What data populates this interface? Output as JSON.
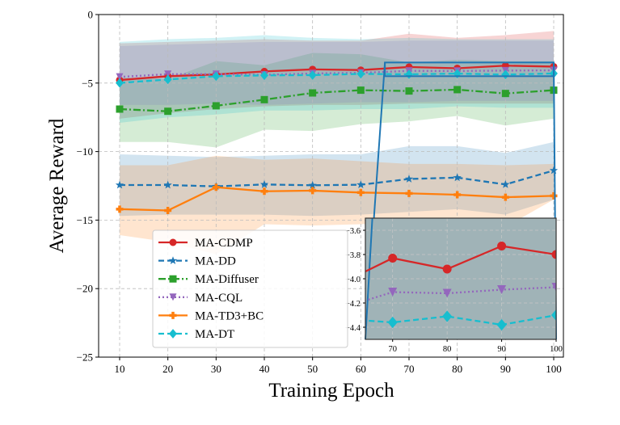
{
  "chart_data": {
    "type": "line",
    "xlabel": "Training Epoch",
    "ylabel": "Average Reward",
    "x": [
      10,
      20,
      30,
      40,
      50,
      60,
      70,
      80,
      90,
      100
    ],
    "xlim": [
      5,
      105
    ],
    "ylim": [
      -25,
      0
    ],
    "xticks": [
      "10",
      "20",
      "30",
      "40",
      "50",
      "60",
      "70",
      "80",
      "90",
      "100"
    ],
    "yticks": [
      "−25",
      "−20",
      "−15",
      "−10",
      "−5",
      "0"
    ],
    "grid": true,
    "legend_position": "lower-left",
    "series": [
      {
        "name": "MA-CDMP",
        "color": "#d62728",
        "marker": "circle",
        "linestyle": "solid",
        "values": [
          -4.78,
          -4.5,
          -4.37,
          -4.15,
          -4.0,
          -4.05,
          -3.83,
          -3.92,
          -3.73,
          -3.8
        ],
        "upper": [
          -2.1,
          -2.0,
          -1.9,
          -1.8,
          -1.9,
          -1.9,
          -1.4,
          -1.7,
          -1.5,
          -1.2
        ],
        "lower": [
          -7.6,
          -7.2,
          -6.9,
          -6.7,
          -6.6,
          -6.6,
          -6.5,
          -6.5,
          -6.5,
          -6.5
        ]
      },
      {
        "name": "MA-DD",
        "color": "#1f77b4",
        "marker": "star",
        "linestyle": "dashed",
        "values": [
          -12.44,
          -12.44,
          -12.54,
          -12.4,
          -12.46,
          -12.42,
          -12.0,
          -11.9,
          -12.4,
          -11.38
        ],
        "upper": [
          -10.2,
          -10.3,
          -10.4,
          -10.3,
          -10.2,
          -10.2,
          -9.6,
          -9.6,
          -10.1,
          -9.3
        ],
        "lower": [
          -14.7,
          -14.6,
          -14.6,
          -14.6,
          -14.7,
          -14.6,
          -14.4,
          -14.2,
          -14.6,
          -13.5
        ]
      },
      {
        "name": "MA-Diffuser",
        "color": "#2ca02c",
        "marker": "square",
        "linestyle": "dashdot",
        "values": [
          -6.9,
          -7.06,
          -6.66,
          -6.21,
          -5.72,
          -5.52,
          -5.58,
          -5.48,
          -5.76,
          -5.52
        ],
        "upper": [
          -4.6,
          -4.7,
          -3.4,
          -3.7,
          -2.8,
          -2.9,
          -3.5,
          -3.3,
          -3.4,
          -3.4
        ],
        "lower": [
          -9.3,
          -9.3,
          -9.7,
          -8.4,
          -8.5,
          -8.0,
          -7.8,
          -7.4,
          -8.1,
          -7.6
        ]
      },
      {
        "name": "MA-CQL",
        "color": "#9467bd",
        "marker": "triangle-down",
        "linestyle": "dotted",
        "values": [
          -4.55,
          -4.35,
          -4.35,
          -4.4,
          -4.3,
          -4.25,
          -4.11,
          -4.12,
          -4.09,
          -4.07
        ],
        "upper": [
          -2.3,
          -2.2,
          -2.1,
          -2.0,
          -2.0,
          -2.0,
          -1.9,
          -1.9,
          -1.9,
          -1.9
        ],
        "lower": [
          -6.6,
          -6.6,
          -6.5,
          -6.6,
          -6.5,
          -6.4,
          -6.4,
          -6.3,
          -6.3,
          -6.3
        ]
      },
      {
        "name": "MA-TD3+BC",
        "color": "#ff7f0e",
        "marker": "plus",
        "linestyle": "solid",
        "values": [
          -14.2,
          -14.3,
          -12.6,
          -12.9,
          -12.85,
          -12.99,
          -13.05,
          -13.15,
          -13.33,
          -13.23
        ],
        "upper": [
          -11.0,
          -11.0,
          -10.3,
          -10.6,
          -10.5,
          -10.7,
          -10.9,
          -10.9,
          -11.0,
          -10.9
        ],
        "lower": [
          -16.1,
          -16.6,
          -17.5,
          -15.3,
          -15.4,
          -15.3,
          -15.2,
          -15.0,
          -15.5,
          -13.5
        ]
      },
      {
        "name": "MA-DT",
        "color": "#17becf",
        "marker": "diamond",
        "linestyle": "dashed",
        "values": [
          -4.99,
          -4.74,
          -4.5,
          -4.44,
          -4.42,
          -4.33,
          -4.36,
          -4.31,
          -4.38,
          -4.3
        ],
        "upper": [
          -2.0,
          -1.8,
          -1.7,
          -1.5,
          -1.7,
          -1.8,
          -1.7,
          -1.8,
          -1.8,
          -1.8
        ],
        "lower": [
          -7.9,
          -7.5,
          -7.3,
          -7.0,
          -7.0,
          -6.9,
          -6.9,
          -6.7,
          -6.8,
          -6.8
        ]
      }
    ],
    "inset": {
      "xlim": [
        65,
        100
      ],
      "ylim": [
        -4.5,
        -3.5
      ],
      "xticks": [
        "70",
        "80",
        "90",
        "100"
      ],
      "yticks": [
        "−4.4",
        "−4.2",
        "−4.0",
        "−3.8",
        "−3.6"
      ],
      "series_shown": [
        "MA-CDMP",
        "MA-CQL",
        "MA-DT"
      ]
    }
  }
}
